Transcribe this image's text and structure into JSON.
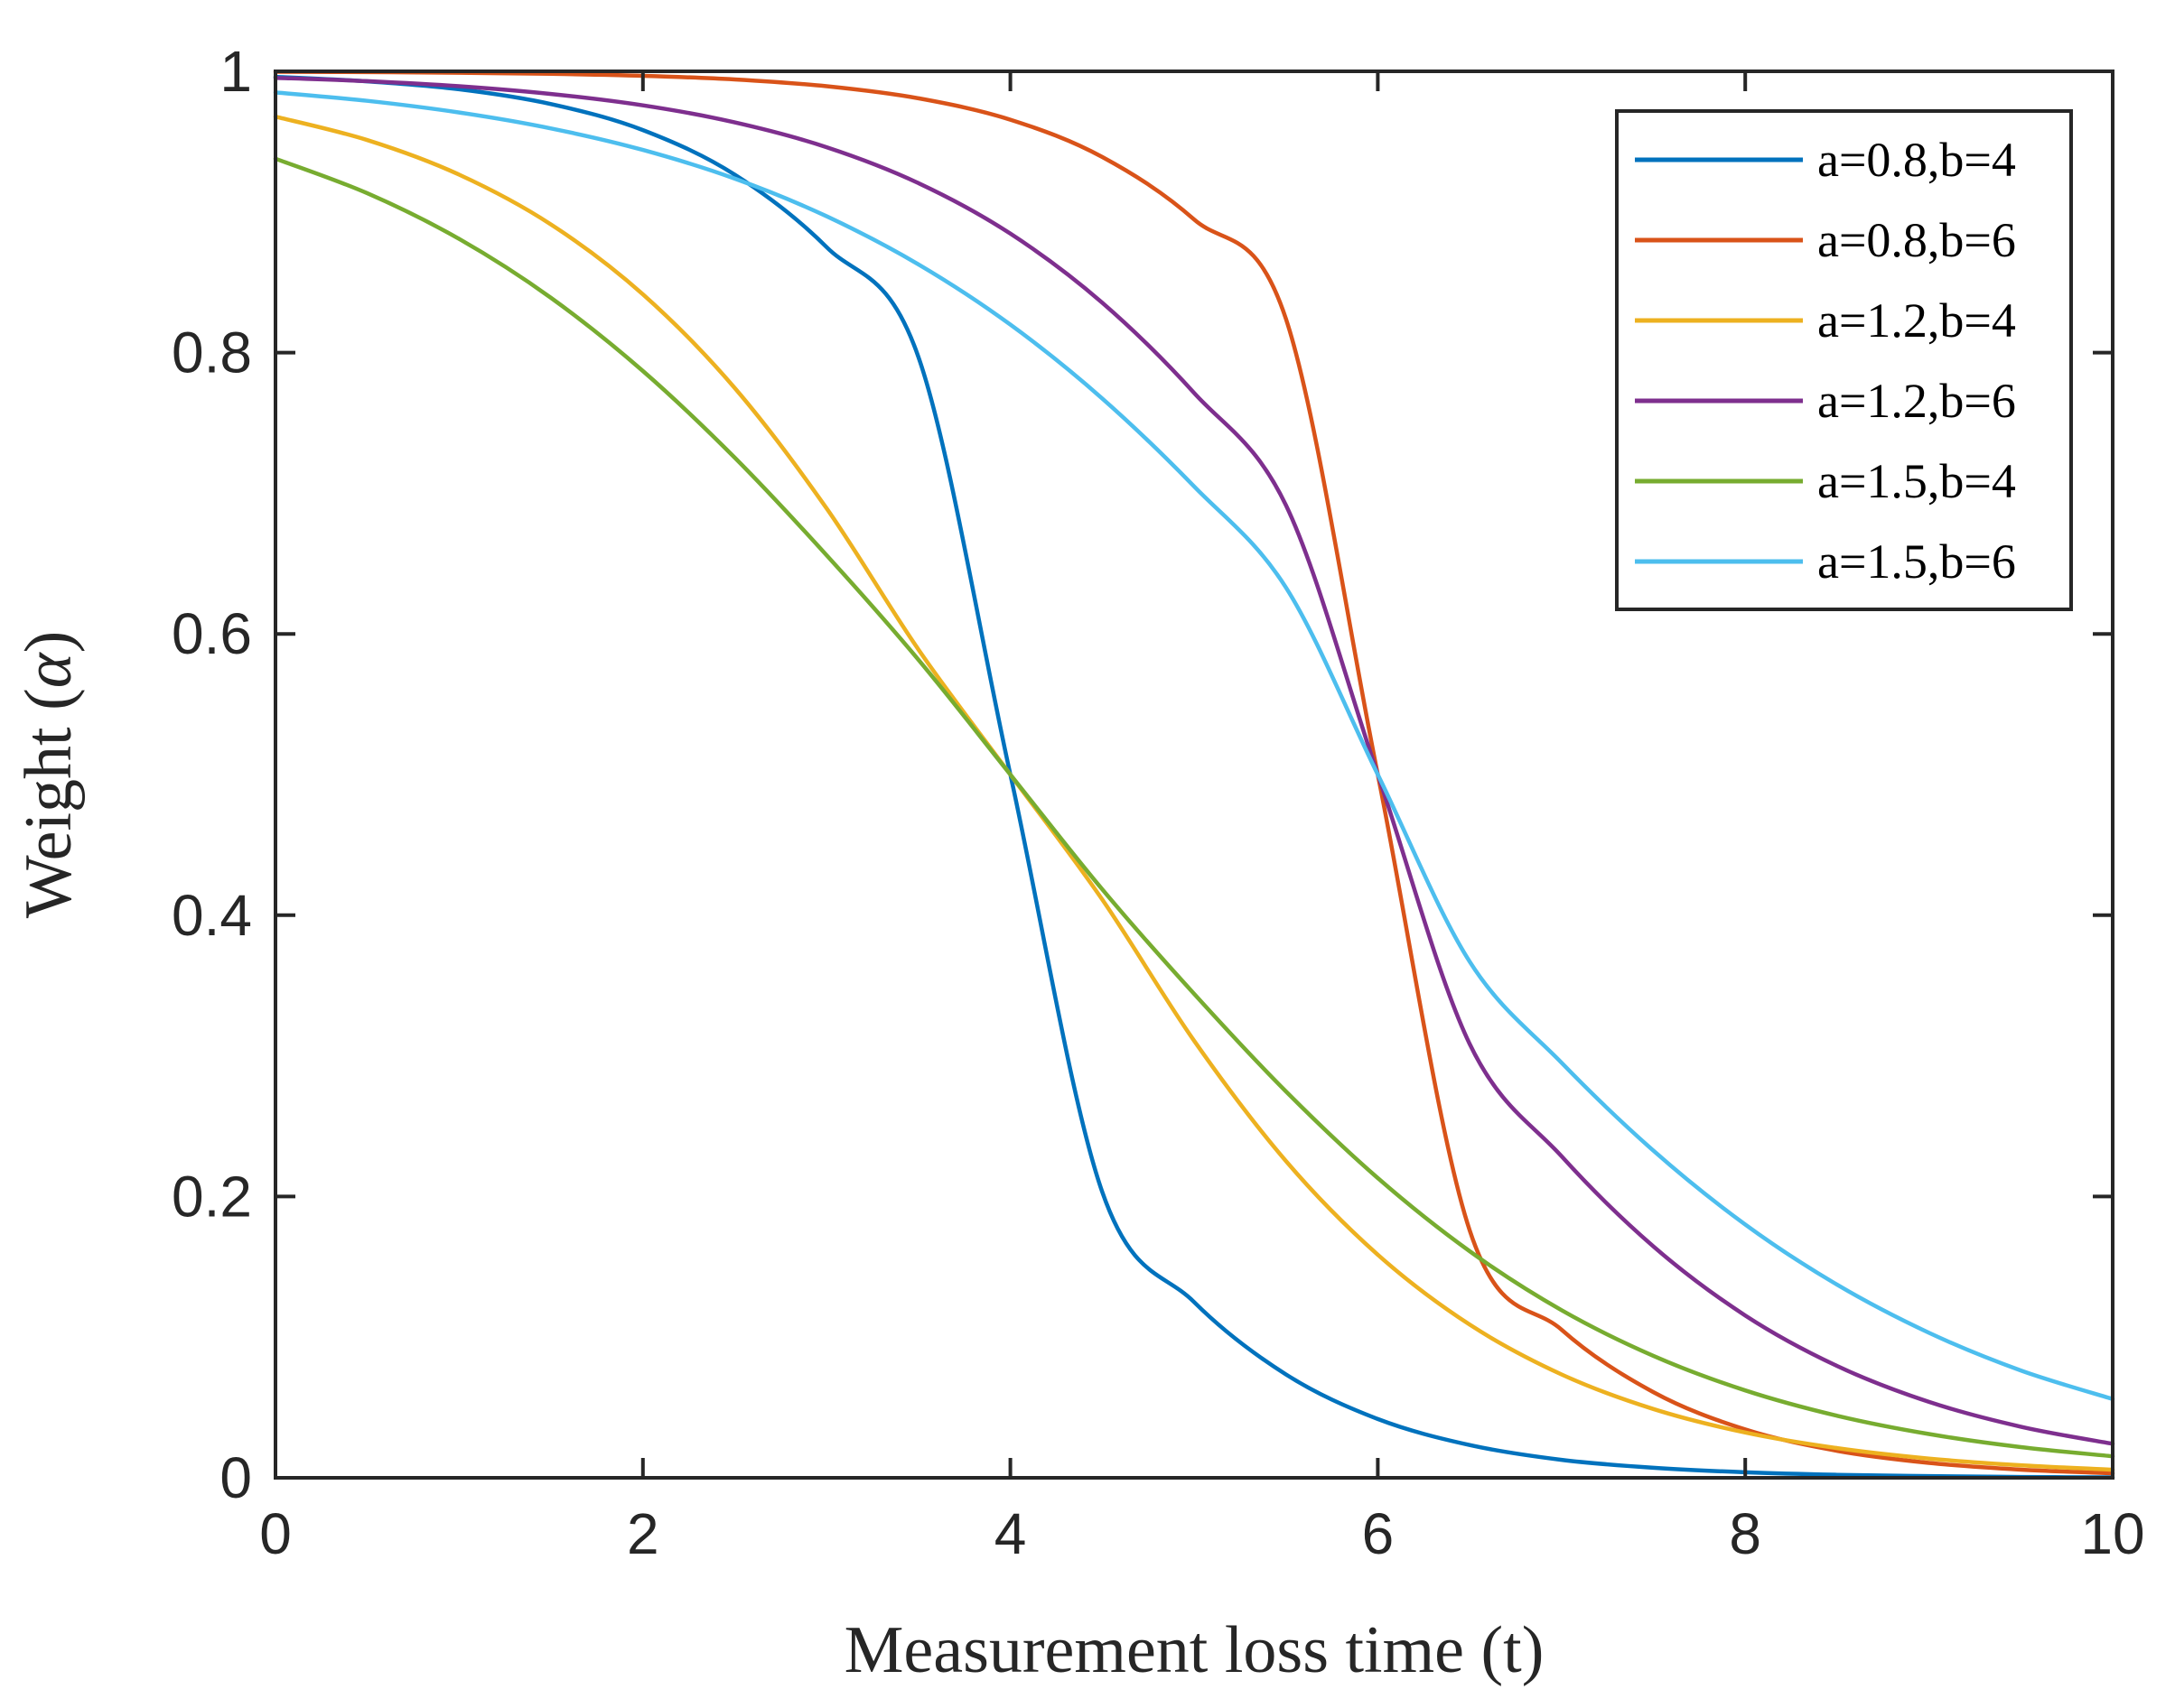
{
  "chart_data": {
    "type": "line",
    "title": "",
    "xlabel": "Measurement loss time (t)",
    "ylabel_text": "Weight (",
    "ylabel_symbol": "α",
    "ylabel_close": ")",
    "xlim": [
      0,
      10
    ],
    "ylim": [
      0,
      1
    ],
    "xticks": [
      0,
      2,
      4,
      6,
      8,
      10
    ],
    "xtick_labels": [
      "0",
      "2",
      "4",
      "6",
      "8",
      "10"
    ],
    "yticks": [
      0,
      0.2,
      0.4,
      0.6,
      0.8,
      1
    ],
    "ytick_labels": [
      "0",
      "0.2",
      "0.4",
      "0.6",
      "0.8",
      "1"
    ],
    "grid": false,
    "legend_position": "top-right",
    "x": [
      0,
      0.5,
      1,
      1.5,
      2,
      2.5,
      3,
      3.5,
      4,
      4.5,
      5,
      5.5,
      6,
      6.5,
      7,
      7.5,
      8,
      8.5,
      9,
      9.5,
      10
    ],
    "series": [
      {
        "name": "a=0.8,b=4",
        "color": "#0072BD",
        "values": [
          0.9961,
          0.9929,
          0.9872,
          0.9767,
          0.9582,
          0.9265,
          0.875,
          0.7967,
          0.5,
          0.2033,
          0.125,
          0.0735,
          0.0418,
          0.0233,
          0.0128,
          0.0071,
          0.0039,
          0.0021,
          0.0012,
          0.0006,
          0.0003
        ]
      },
      {
        "name": "a=0.8,b=6",
        "color": "#D95319",
        "values": [
          0.9997,
          0.9994,
          0.999,
          0.9982,
          0.9968,
          0.9942,
          0.9894,
          0.9808,
          0.9656,
          0.9391,
          0.8947,
          0.824,
          0.5,
          0.176,
          0.1053,
          0.0609,
          0.0344,
          0.0192,
          0.0106,
          0.0058,
          0.0032
        ]
      },
      {
        "name": "a=1.2,b=4",
        "color": "#EDB120",
        "values": [
          0.9678,
          0.9511,
          0.9265,
          0.8911,
          0.8414,
          0.7748,
          0.6892,
          0.5888,
          0.5,
          0.4112,
          0.3108,
          0.2252,
          0.1586,
          0.1089,
          0.0735,
          0.0489,
          0.0322,
          0.0211,
          0.0137,
          0.0089,
          0.0058
        ]
      },
      {
        "name": "a=1.2,b=6",
        "color": "#7E2F8E",
        "values": [
          0.9954,
          0.993,
          0.9894,
          0.9839,
          0.9758,
          0.9637,
          0.946,
          0.9205,
          0.8846,
          0.8355,
          0.7714,
          0.6915,
          0.5,
          0.3085,
          0.2286,
          0.1645,
          0.1154,
          0.0795,
          0.054,
          0.0363,
          0.0242
        ]
      },
      {
        "name": "a=1.5,b=4",
        "color": "#77AC30",
        "values": [
          0.9379,
          0.9133,
          0.8808,
          0.8389,
          0.7869,
          0.7253,
          0.6559,
          0.5816,
          0.5,
          0.4184,
          0.3441,
          0.2747,
          0.2131,
          0.1611,
          0.1192,
          0.0867,
          0.0621,
          0.0441,
          0.0311,
          0.0218,
          0.0153
        ]
      },
      {
        "name": "a=1.5,b=6",
        "color": "#4DBEEE",
        "values": [
          0.985,
          0.979,
          0.9707,
          0.9594,
          0.9441,
          0.9237,
          0.8969,
          0.8627,
          0.8199,
          0.7674,
          0.7049,
          0.633,
          0.5,
          0.367,
          0.2951,
          0.2326,
          0.1801,
          0.1373,
          0.1031,
          0.0763,
          0.056
        ]
      }
    ]
  }
}
